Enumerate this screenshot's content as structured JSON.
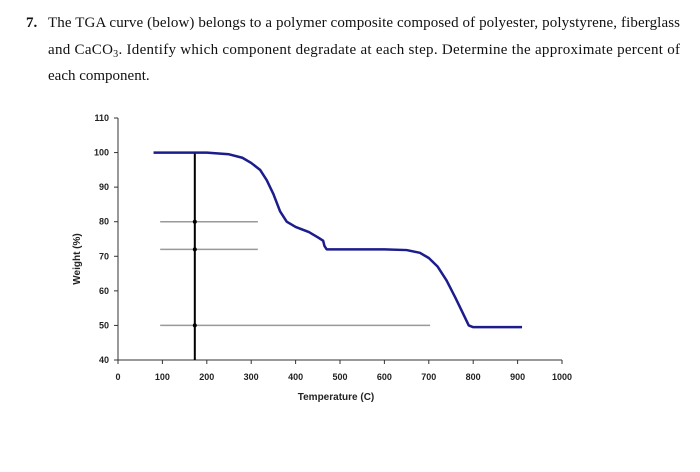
{
  "question": {
    "number": "7.",
    "lines": [
      "The TGA curve (below) belongs to a polymer composite composed of polyester, polystyrene, fiberglass",
      [
        "and CaCO",
        "3",
        ". Identify which component degradate at each step. Determine the approximate percent of"
      ],
      "each component."
    ]
  },
  "chart_data": {
    "type": "line",
    "xlabel": "Temperature (C)",
    "ylabel": "Weight (%)",
    "xlim": [
      0,
      1000
    ],
    "ylim": [
      40,
      110
    ],
    "xticks": [
      0,
      100,
      200,
      300,
      400,
      500,
      600,
      700,
      800,
      900,
      1000
    ],
    "yticks": [
      40,
      50,
      60,
      70,
      80,
      90,
      100,
      110
    ],
    "grid": false,
    "series": [
      {
        "color": "#1c1c8c",
        "x": [
          80,
          200,
          250,
          280,
          300,
          320,
          335,
          350,
          365,
          380,
          400,
          430,
          450,
          462,
          465,
          470,
          550,
          600,
          650,
          680,
          700,
          720,
          740,
          760,
          775,
          790,
          800,
          910
        ],
        "values": [
          100,
          100,
          99.5,
          98.5,
          97,
          95,
          92,
          88,
          83,
          80,
          78.5,
          77,
          75.5,
          74.5,
          73,
          72,
          72,
          72,
          71.8,
          71,
          69.5,
          67,
          63,
          58,
          54,
          50,
          49.5,
          49.5
        ]
      }
    ],
    "guides": {
      "color": "#999999",
      "horizontal": [
        {
          "y": 80,
          "x": [
            95,
            315
          ]
        },
        {
          "y": 72,
          "x": [
            95,
            315
          ]
        },
        {
          "y": 50,
          "x": [
            95,
            703
          ]
        }
      ],
      "vertical": {
        "x": 173,
        "y": [
          40,
          100
        ],
        "color": "#000000"
      }
    }
  }
}
